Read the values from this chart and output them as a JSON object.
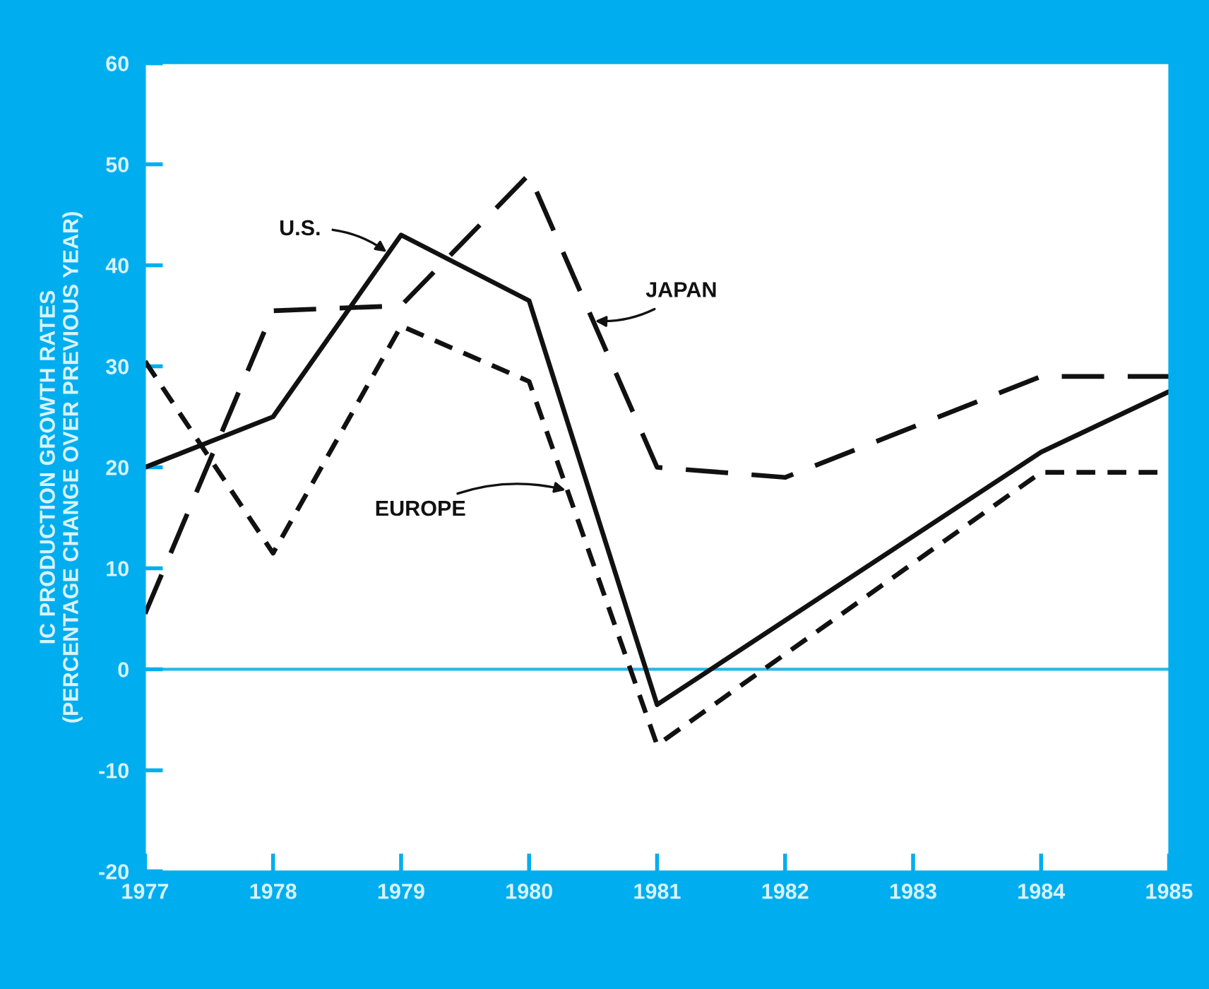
{
  "chart_data": {
    "type": "line",
    "ylabel": "IC PRODUCTION GROWTH RATES\n(PERCENTAGE CHANGE OVER PREVIOUS YEAR)",
    "xlim": [
      1977,
      1985
    ],
    "xticks": [
      1977,
      1978,
      1979,
      1980,
      1981,
      1982,
      1983,
      1984,
      1985
    ],
    "ylim": [
      -20,
      60
    ],
    "yticks": [
      -20,
      -10,
      0,
      10,
      20,
      30,
      40,
      50,
      60
    ],
    "grid": false,
    "marker": "none",
    "ref_lines": [
      {
        "axis": "y",
        "value": 0,
        "color": "#29b6e8"
      }
    ],
    "series": [
      {
        "name": "U.S.",
        "color": "#111111",
        "line_style": "solid",
        "x": [
          1977,
          1978,
          1979,
          1980,
          1981,
          1984,
          1985
        ],
        "values": [
          20,
          25,
          43,
          36.5,
          -3.5,
          21.5,
          27.5
        ]
      },
      {
        "name": "JAPAN",
        "color": "#111111",
        "line_style": "dashed",
        "x": [
          1977,
          1978,
          1979,
          1980,
          1981,
          1982,
          1984,
          1985
        ],
        "values": [
          5.5,
          35.5,
          36,
          49,
          20,
          19,
          29,
          29
        ]
      },
      {
        "name": "EUROPE",
        "color": "#111111",
        "line_style": "dotted",
        "x": [
          1977,
          1978,
          1979,
          1980,
          1981,
          1984,
          1985
        ],
        "values": [
          30.5,
          11.5,
          34,
          28.5,
          -7.5,
          19.5,
          19.5
        ]
      }
    ]
  }
}
